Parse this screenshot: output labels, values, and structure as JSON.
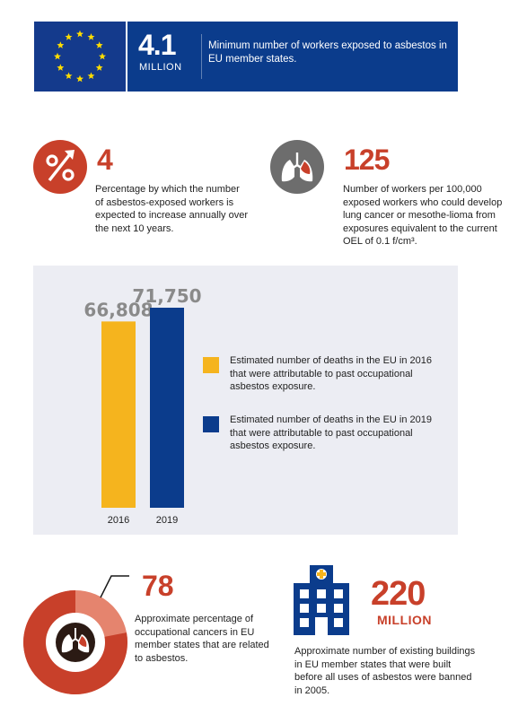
{
  "banner": {
    "value": "4.1",
    "unit": "MILLION",
    "text": "Minimum number of workers exposed to asbestos in EU member states."
  },
  "stats": {
    "growth": {
      "icon": "percent-up-icon",
      "value": "4",
      "text": "Percentage by which the number of asbestos-exposed workers is expected to increase annually over the next 10 years."
    },
    "cancer": {
      "icon": "lungs-icon",
      "value": "125",
      "text": "Number of workers per 100,000 exposed workers who could develop lung cancer or mesothe-lioma from exposures equivalent to the current OEL of 0.1 f/cm³."
    },
    "cancers_share": {
      "icon": "lungs-icon",
      "value": "78",
      "percent": 78,
      "text": "Approximate percentage of occupational cancers in EU member states that are related to asbestos."
    },
    "buildings": {
      "icon": "building-icon",
      "value": "220",
      "unit": "MILLION",
      "text": "Approximate number of existing buildings in EU member states that were built before all uses of asbestos were banned in 2005."
    }
  },
  "chart_data": {
    "type": "bar",
    "categories": [
      "2016",
      "2019"
    ],
    "values": [
      66808,
      71750
    ],
    "value_labels": [
      "66,808",
      "71,750"
    ],
    "colors": [
      "#f5b41e",
      "#0b3c8c"
    ],
    "ylim": [
      0,
      74000
    ],
    "legend": [
      "Estimated number of deaths in the EU in 2016 that were attributable to past occupational asbestos exposure.",
      "Estimated number of deaths in the EU in 2019 that were attributable to past occupational asbestos exposure."
    ]
  },
  "colors": {
    "accent_red": "#c8402a",
    "brand_blue": "#0b3c8c",
    "yellow": "#f5b41e",
    "panel_bg": "#ecedf3"
  }
}
